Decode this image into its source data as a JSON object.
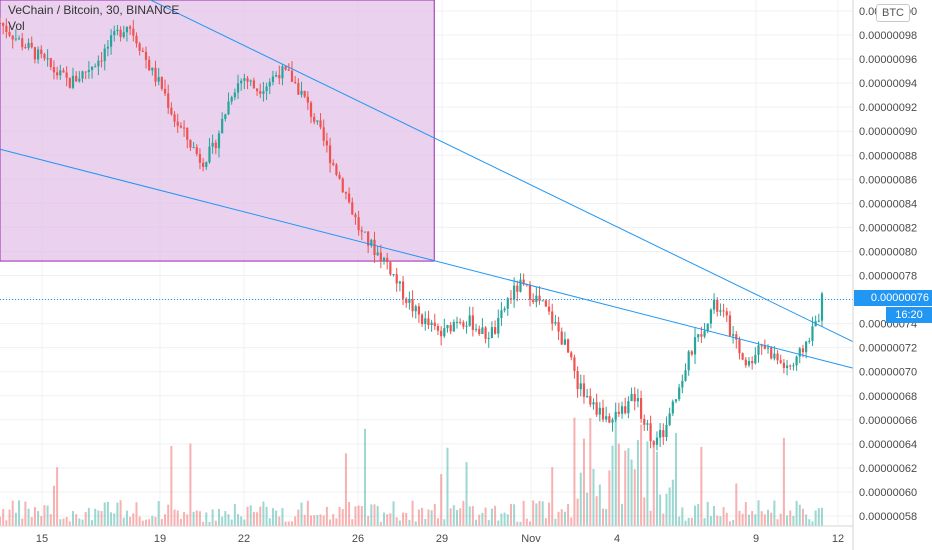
{
  "legend": {
    "title": "VeChain / Bitcoin, 30, BINANCE",
    "volume_label": "Vol"
  },
  "currency_badge": "BTC",
  "last_price_label": "0.00000076",
  "countdown_label": "16:20",
  "colors": {
    "up": "#26a69a",
    "down": "#ef5350",
    "shape_fill": "#e1bee7",
    "shape_border": "#9c27b0",
    "trendline": "#2196f3",
    "grid": "#eef0f3"
  },
  "chart_data": {
    "type": "candlestick",
    "title": "VeChain / Bitcoin, 30, BINANCE",
    "xlabel": "",
    "ylabel": "",
    "ylim": [
      5.7e-07,
      1e-06
    ],
    "y_ticks": [
      "0.00000058",
      "0.00000060",
      "0.00000062",
      "0.00000064",
      "0.00000066",
      "0.00000068",
      "0.00000070",
      "0.00000072",
      "0.00000074",
      "0.00000076",
      "0.00000078",
      "0.00000080",
      "0.00000082",
      "0.00000084",
      "0.00000086",
      "0.00000088",
      "0.00000090",
      "0.00000092",
      "0.00000094",
      "0.00000096",
      "0.00000098",
      "0.00000100"
    ],
    "x_ticks": [
      "15",
      "19",
      "22",
      "26",
      "29",
      "Nov",
      "4",
      "9",
      "12"
    ],
    "grid": true,
    "last_price": 7.6e-07,
    "price_path_knots": [
      [
        0,
        9.9e-07
      ],
      [
        0.05,
        9.75e-07
      ],
      [
        0.1,
        9.62e-07
      ],
      [
        0.14,
        9.5e-07
      ],
      [
        0.18,
        9.4e-07
      ],
      [
        0.22,
        9.5e-07
      ],
      [
        0.26,
        9.62e-07
      ],
      [
        0.3,
        9.8e-07
      ],
      [
        0.33,
        9.9e-07
      ],
      [
        0.36,
        9.72e-07
      ],
      [
        0.39,
        9.5e-07
      ],
      [
        0.42,
        9.35e-07
      ],
      [
        0.45,
        9.1e-07
      ],
      [
        0.48,
        8.95e-07
      ],
      [
        0.52,
        8.75e-07
      ],
      [
        0.55,
        8.85e-07
      ],
      [
        0.57,
        9.05e-07
      ],
      [
        0.6,
        9.35e-07
      ],
      [
        0.63,
        9.45e-07
      ],
      [
        0.66,
        9.35e-07
      ],
      [
        0.69,
        9.4e-07
      ],
      [
        0.72,
        9.5e-07
      ],
      [
        0.75,
        9.45e-07
      ],
      [
        0.78,
        9.3e-07
      ],
      [
        0.81,
        9.1e-07
      ],
      [
        0.85,
        8.8e-07
      ],
      [
        0.89,
        8.5e-07
      ],
      [
        0.93,
        8.15e-07
      ],
      [
        0.97,
        8e-07
      ],
      [
        1.0,
        7.9e-07
      ],
      [
        1.03,
        7.7e-07
      ],
      [
        1.07,
        7.5e-07
      ],
      [
        1.1,
        7.4e-07
      ],
      [
        1.14,
        7.3e-07
      ],
      [
        1.18,
        7.45e-07
      ],
      [
        1.22,
        7.4e-07
      ],
      [
        1.25,
        7.3e-07
      ],
      [
        1.28,
        7.35e-07
      ],
      [
        1.31,
        7.6e-07
      ],
      [
        1.34,
        7.72e-07
      ],
      [
        1.37,
        7.65e-07
      ],
      [
        1.4,
        7.55e-07
      ],
      [
        1.43,
        7.4e-07
      ],
      [
        1.46,
        7.2e-07
      ],
      [
        1.49,
        6.9e-07
      ],
      [
        1.52,
        6.75e-07
      ],
      [
        1.55,
        6.65e-07
      ],
      [
        1.58,
        6.6e-07
      ],
      [
        1.61,
        6.7e-07
      ],
      [
        1.64,
        6.8e-07
      ],
      [
        1.66,
        6.6e-07
      ],
      [
        1.69,
        6.4e-07
      ],
      [
        1.72,
        6.55e-07
      ],
      [
        1.75,
        6.85e-07
      ],
      [
        1.78,
        7.15e-07
      ],
      [
        1.81,
        7.35e-07
      ],
      [
        1.84,
        7.55e-07
      ],
      [
        1.87,
        7.45e-07
      ],
      [
        1.9,
        7.2e-07
      ],
      [
        1.93,
        7.05e-07
      ],
      [
        1.96,
        7.25e-07
      ],
      [
        1.99,
        7.15e-07
      ],
      [
        2.02,
        7.05e-07
      ],
      [
        2.05,
        7.05e-07
      ],
      [
        2.08,
        7.25e-07
      ],
      [
        2.11,
        7.45e-07
      ],
      [
        2.12,
        7.6e-07
      ]
    ],
    "trendlines": [
      {
        "name": "upper",
        "points": [
          [
            -1e-07,
            1.07e-06
          ],
          [
            2.2,
            7.25e-07
          ]
        ]
      },
      {
        "name": "lower",
        "points": [
          [
            -1e-07,
            8.85e-07
          ],
          [
            2.2,
            7.03e-07
          ]
        ]
      }
    ],
    "rectangle": {
      "x_range": [
        0,
        1.12
      ],
      "y_range": [
        7.92e-07,
        1e-06
      ]
    }
  }
}
